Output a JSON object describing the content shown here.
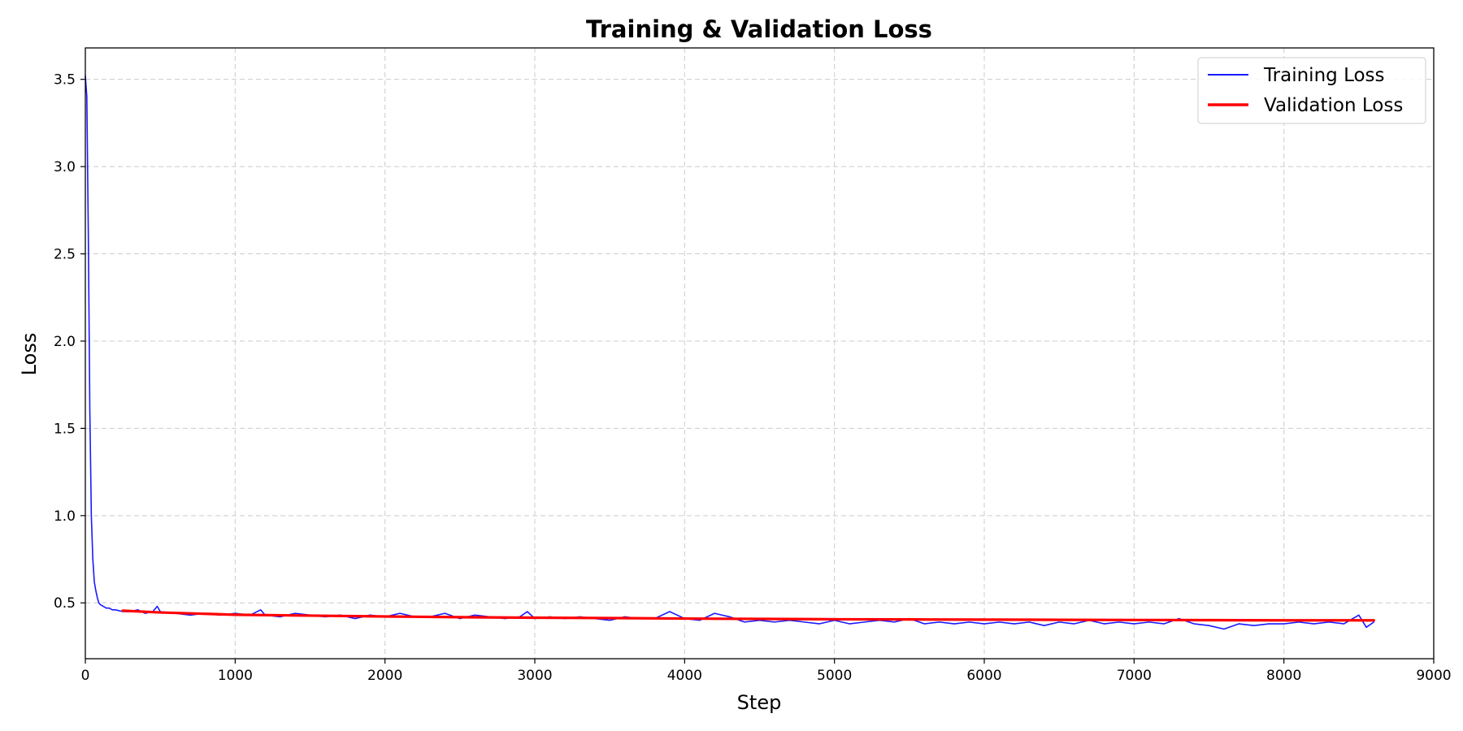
{
  "chart_data": {
    "type": "line",
    "title": "Training & Validation Loss",
    "xlabel": "Step",
    "ylabel": "Loss",
    "xlim": [
      0,
      9000
    ],
    "ylim": [
      0.18,
      3.68
    ],
    "xticks": [
      0,
      1000,
      2000,
      3000,
      4000,
      5000,
      6000,
      7000,
      8000,
      9000
    ],
    "yticks": [
      0.5,
      1.0,
      1.5,
      2.0,
      2.5,
      3.0,
      3.5
    ],
    "ytick_labels": [
      "0.5",
      "1.0",
      "1.5",
      "2.0",
      "2.5",
      "3.0",
      "3.5"
    ],
    "grid": true,
    "legend_position": "top-right",
    "series": [
      {
        "name": "Training Loss",
        "color": "#1a1aff",
        "x": [
          0,
          10,
          20,
          30,
          40,
          50,
          60,
          70,
          80,
          90,
          100,
          120,
          140,
          160,
          180,
          200,
          250,
          300,
          350,
          400,
          450,
          480,
          500,
          600,
          700,
          800,
          900,
          1000,
          1100,
          1170,
          1200,
          1300,
          1400,
          1500,
          1600,
          1700,
          1800,
          1900,
          2000,
          2100,
          2200,
          2300,
          2400,
          2500,
          2600,
          2700,
          2800,
          2900,
          2950,
          3000,
          3100,
          3200,
          3300,
          3400,
          3500,
          3600,
          3700,
          3800,
          3900,
          4000,
          4100,
          4200,
          4300,
          4400,
          4500,
          4600,
          4700,
          4800,
          4900,
          5000,
          5100,
          5200,
          5300,
          5400,
          5500,
          5600,
          5700,
          5800,
          5900,
          6000,
          6100,
          6200,
          6300,
          6400,
          6500,
          6600,
          6700,
          6800,
          6900,
          7000,
          7100,
          7200,
          7300,
          7400,
          7500,
          7600,
          7700,
          7800,
          7900,
          8000,
          8100,
          8200,
          8300,
          8400,
          8500,
          8550,
          8600
        ],
        "y": [
          3.52,
          3.4,
          2.6,
          1.6,
          1.0,
          0.75,
          0.62,
          0.57,
          0.53,
          0.5,
          0.49,
          0.48,
          0.47,
          0.47,
          0.46,
          0.46,
          0.45,
          0.45,
          0.46,
          0.44,
          0.45,
          0.48,
          0.45,
          0.44,
          0.43,
          0.44,
          0.43,
          0.44,
          0.43,
          0.46,
          0.43,
          0.42,
          0.44,
          0.43,
          0.42,
          0.43,
          0.41,
          0.43,
          0.42,
          0.44,
          0.42,
          0.42,
          0.44,
          0.41,
          0.43,
          0.42,
          0.41,
          0.42,
          0.45,
          0.41,
          0.42,
          0.41,
          0.42,
          0.41,
          0.4,
          0.42,
          0.41,
          0.41,
          0.45,
          0.41,
          0.4,
          0.44,
          0.42,
          0.39,
          0.4,
          0.39,
          0.4,
          0.39,
          0.38,
          0.4,
          0.38,
          0.39,
          0.4,
          0.39,
          0.41,
          0.38,
          0.39,
          0.38,
          0.39,
          0.38,
          0.39,
          0.38,
          0.39,
          0.37,
          0.39,
          0.38,
          0.4,
          0.38,
          0.39,
          0.38,
          0.39,
          0.38,
          0.41,
          0.38,
          0.37,
          0.35,
          0.38,
          0.37,
          0.38,
          0.38,
          0.39,
          0.38,
          0.39,
          0.38,
          0.43,
          0.36,
          0.39
        ]
      },
      {
        "name": "Validation Loss",
        "color": "#ff0000",
        "x": [
          250,
          500,
          1000,
          1500,
          2000,
          2500,
          3000,
          3500,
          4000,
          4500,
          5000,
          5500,
          6000,
          6500,
          7000,
          7500,
          8000,
          8500,
          8600
        ],
        "y": [
          0.455,
          0.445,
          0.432,
          0.427,
          0.422,
          0.418,
          0.415,
          0.413,
          0.41,
          0.408,
          0.406,
          0.405,
          0.404,
          0.403,
          0.402,
          0.401,
          0.4,
          0.4,
          0.4
        ]
      }
    ]
  }
}
